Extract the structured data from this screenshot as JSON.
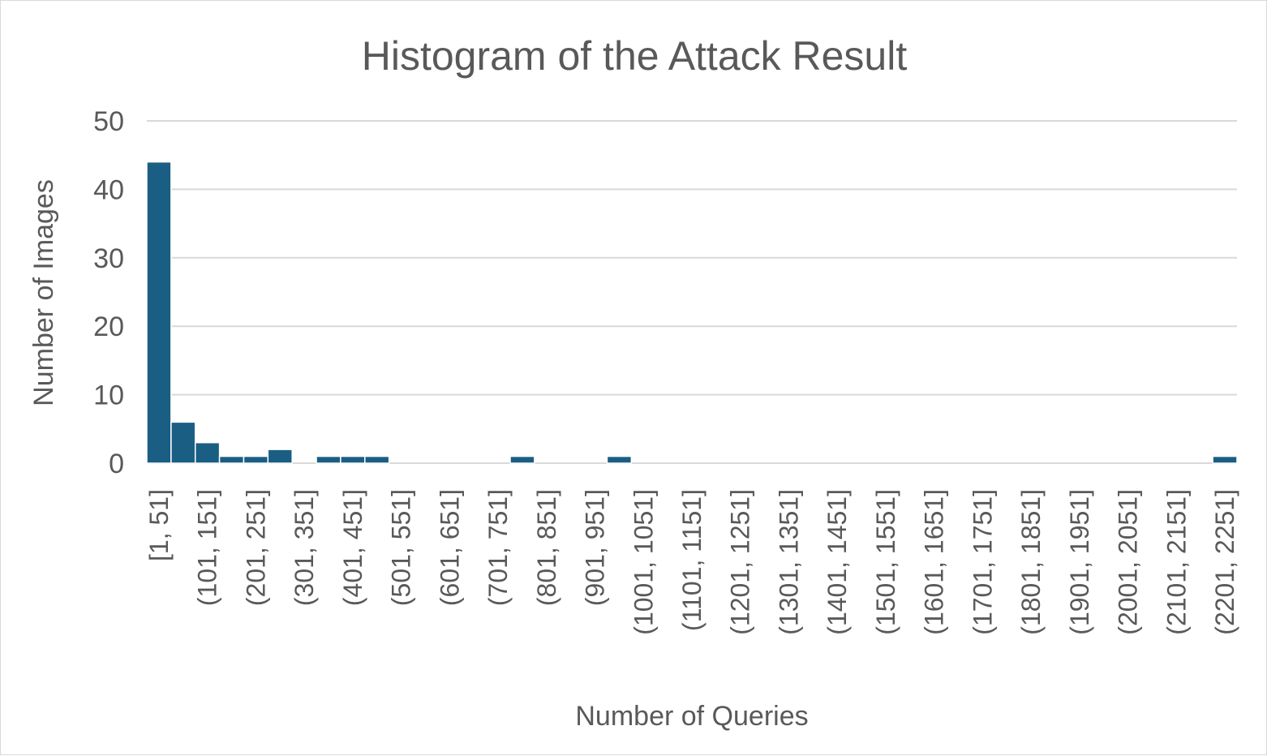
{
  "chart_data": {
    "type": "bar",
    "title": "Histogram of the Attack Result",
    "xlabel": "Number of Queries",
    "ylabel": "Number of Images",
    "ylim": [
      0,
      50
    ],
    "yticks": [
      0,
      10,
      20,
      30,
      40,
      50
    ],
    "grid": true,
    "legend": "none",
    "bar_color": "#1a5e84",
    "categories": [
      "[1, 51]",
      "(51, 101]",
      "(101, 151]",
      "(151, 201]",
      "(201, 251]",
      "(251, 301]",
      "(301, 351]",
      "(351, 401]",
      "(401, 451]",
      "(451, 501]",
      "(501, 551]",
      "(551, 601]",
      "(601, 651]",
      "(651, 701]",
      "(701, 751]",
      "(751, 801]",
      "(801, 851]",
      "(851, 901]",
      "(901, 951]",
      "(951, 1001]",
      "(1001, 1051]",
      "(1051, 1101]",
      "(1101, 1151]",
      "(1151, 1201]",
      "(1201, 1251]",
      "(1251, 1301]",
      "(1301, 1351]",
      "(1351, 1401]",
      "(1401, 1451]",
      "(1451, 1501]",
      "(1501, 1551]",
      "(1551, 1601]",
      "(1601, 1651]",
      "(1651, 1701]",
      "(1701, 1751]",
      "(1751, 1801]",
      "(1801, 1851]",
      "(1851, 1901]",
      "(1901, 1951]",
      "(1951, 2001]",
      "(2001, 2051]",
      "(2051, 2101]",
      "(2101, 2151]",
      "(2151, 2201]",
      "(2201, 2251]"
    ],
    "values": [
      44,
      6,
      3,
      1,
      1,
      2,
      0,
      1,
      1,
      1,
      0,
      0,
      0,
      0,
      0,
      1,
      0,
      0,
      0,
      1,
      0,
      0,
      0,
      0,
      0,
      0,
      0,
      0,
      0,
      0,
      0,
      0,
      0,
      0,
      0,
      0,
      0,
      0,
      0,
      0,
      0,
      0,
      0,
      0,
      1
    ],
    "label_every": 2
  }
}
